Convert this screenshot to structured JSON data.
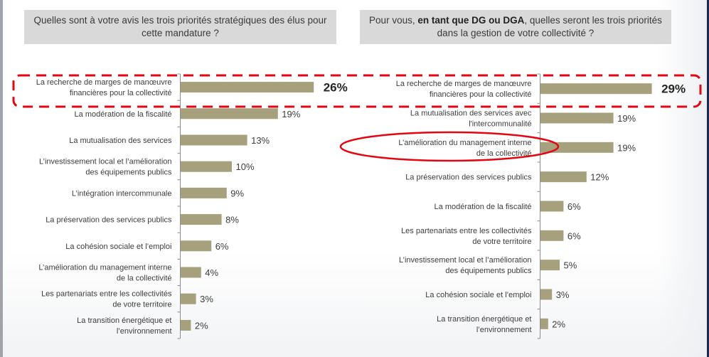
{
  "questions": {
    "left": "Quelles sont à votre avis les trois priorités stratégiques des élus pour cette mandature ?",
    "right_prefix": "Pour vous, ",
    "right_bold": "en tant que DG ou DGA",
    "right_suffix": ", quelles seront les trois priorités dans la gestion de votre collectivité ?"
  },
  "colors": {
    "bar": "#a6a07c",
    "highlight": "#e30613",
    "question_bg": "#d9d9d9",
    "axis": "#8c8c8c"
  },
  "chart_data": [
    {
      "type": "bar",
      "orientation": "horizontal",
      "title": "Quelles sont à votre avis les trois priorités stratégiques des élus pour cette mandature ?",
      "xlabel": "",
      "ylabel": "",
      "unit": "%",
      "xlim": [
        0,
        26
      ],
      "grid": false,
      "categories": [
        [
          "La recherche de marges de manœuvre",
          "financières pour la collectivité"
        ],
        [
          "La modération de la fiscalité"
        ],
        [
          "La mutualisation des services"
        ],
        [
          "L’investissement local et l’amélioration",
          "des équipements publics"
        ],
        [
          "L’intégration intercommunale"
        ],
        [
          "La préservation des services publics"
        ],
        [
          "La cohésion sociale et l’emploi"
        ],
        [
          "L’amélioration du management interne",
          "de la collectivité"
        ],
        [
          "Les partenariats entre les collectivités",
          "de votre territoire"
        ],
        [
          "La transition énergétique et",
          "l’environnement"
        ]
      ],
      "values": [
        26,
        19,
        13,
        10,
        9,
        8,
        6,
        4,
        3,
        2
      ],
      "labels": [
        "26%",
        "19%",
        "13%",
        "10%",
        "9%",
        "8%",
        "6%",
        "4%",
        "3%",
        "2%"
      ],
      "highlighted_index": 0
    },
    {
      "type": "bar",
      "orientation": "horizontal",
      "title": "Pour vous, en tant que DG ou DGA, quelles seront les trois priorités dans la gestion de votre collectivité ?",
      "xlabel": "",
      "ylabel": "",
      "unit": "%",
      "xlim": [
        0,
        29
      ],
      "grid": false,
      "categories": [
        [
          "La recherche de marges de manœuvre",
          "financières pour la collectivité"
        ],
        [
          "La mutualisation des services avec",
          "l'intercommunalité"
        ],
        [
          "L’amélioration du management interne",
          "de la collectivité"
        ],
        [
          "La préservation des services publics"
        ],
        [
          "La modération de la fiscalité"
        ],
        [
          "Les partenariats entre les collectivités",
          "de votre territoire"
        ],
        [
          "L’investissement local et l’amélioration",
          "des équipements publics"
        ],
        [
          "La cohésion sociale et l’emploi"
        ],
        [
          "La transition énergétique et",
          "l’environnement"
        ]
      ],
      "values": [
        29,
        19,
        19,
        12,
        6,
        6,
        5,
        3,
        2
      ],
      "labels": [
        "29%",
        "19%",
        "19%",
        "12%",
        "6%",
        "6%",
        "5%",
        "3%",
        "2%"
      ],
      "highlighted_index": 0,
      "circled_index": 2
    }
  ]
}
